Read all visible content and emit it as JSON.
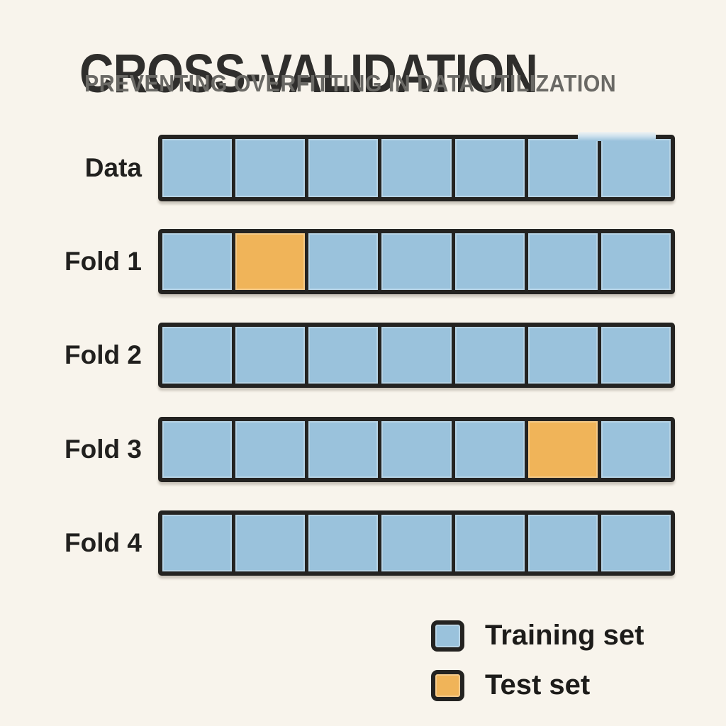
{
  "title": "CROSS-VALIDATION",
  "subtitle": "PREVENTING OVERFITTING IN DATA UTILIZATION",
  "colors": {
    "background": "#f8f4ec",
    "training": "#9ac2dc",
    "test": "#f0b459",
    "border": "#242321",
    "title_text": "#2f2e2c",
    "subtitle_text": "#6a6965",
    "label_text": "#21201e",
    "legend_text": "#1d1c1a"
  },
  "diagram": {
    "rows": [
      {
        "label": "Data",
        "cells": [
          "training",
          "training",
          "training",
          "training",
          "training",
          "training",
          "training"
        ]
      },
      {
        "label": "Fold 1",
        "cells": [
          "training",
          "test",
          "training",
          "training",
          "training",
          "training",
          "training"
        ]
      },
      {
        "label": "Fold 2",
        "cells": [
          "training",
          "training",
          "training",
          "training",
          "training",
          "training",
          "training"
        ]
      },
      {
        "label": "Fold 3",
        "cells": [
          "training",
          "training",
          "training",
          "training",
          "training",
          "test",
          "training"
        ]
      },
      {
        "label": "Fold 4",
        "cells": [
          "training",
          "training",
          "training",
          "training",
          "training",
          "training",
          "training"
        ]
      }
    ]
  },
  "legend": {
    "items": [
      {
        "type": "training",
        "label": "Training set"
      },
      {
        "type": "test",
        "label": "Test set"
      }
    ]
  }
}
